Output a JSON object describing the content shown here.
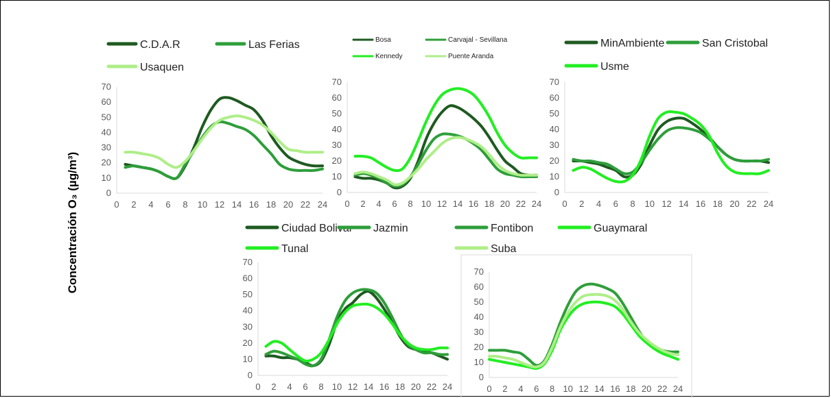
{
  "figure": {
    "ylabel": "Concentración O₃ (µg/m³)"
  },
  "colors": {
    "dark": "#1e5a20",
    "mid": "#2e9e3a",
    "bright": "#22ee22",
    "light": "#aeee88",
    "axis": "#d9d9d9",
    "tick": "#595959"
  },
  "chart_data": [
    {
      "type": "line",
      "legend": "top",
      "x_ticks": [
        0,
        2,
        4,
        6,
        8,
        10,
        12,
        14,
        16,
        18,
        20,
        22,
        24
      ],
      "ylim": [
        0,
        70
      ],
      "y_ticks": [
        0,
        10,
        20,
        30,
        40,
        50,
        60,
        70
      ],
      "x": [
        1,
        2,
        3,
        4,
        5,
        6,
        7,
        8,
        9,
        10,
        11,
        12,
        13,
        14,
        15,
        16,
        17,
        18,
        19,
        20,
        21,
        22,
        23,
        24
      ],
      "series": [
        {
          "name": "C.D.A.R",
          "color": "dark",
          "values": [
            19,
            18,
            17,
            16,
            14,
            11,
            10,
            18,
            30,
            44,
            55,
            62,
            63,
            61,
            58,
            55,
            48,
            38,
            30,
            24,
            21,
            19,
            18,
            18
          ]
        },
        {
          "name": "Las Ferias",
          "color": "mid",
          "values": [
            17,
            18,
            17,
            16,
            14,
            11,
            10,
            19,
            28,
            37,
            44,
            47,
            46,
            44,
            42,
            38,
            32,
            26,
            19,
            16,
            15,
            15,
            15,
            16
          ]
        },
        {
          "name": "Usaquen",
          "color": "light",
          "values": [
            27,
            27,
            26,
            25,
            23,
            19,
            17,
            21,
            28,
            36,
            43,
            48,
            50,
            51,
            50,
            48,
            45,
            40,
            34,
            29,
            28,
            27,
            27,
            27
          ]
        }
      ]
    },
    {
      "type": "line",
      "legend": "top",
      "x_ticks": [
        0,
        2,
        4,
        6,
        8,
        10,
        12,
        14,
        16,
        18,
        20,
        22,
        24
      ],
      "ylim": [
        0,
        70
      ],
      "y_ticks": [
        0,
        10,
        20,
        30,
        40,
        50,
        60,
        70
      ],
      "x": [
        1,
        2,
        3,
        4,
        5,
        6,
        7,
        8,
        9,
        10,
        11,
        12,
        13,
        14,
        15,
        16,
        17,
        18,
        19,
        20,
        21,
        22,
        23,
        24
      ],
      "series": [
        {
          "name": "Bosa",
          "color": "dark",
          "values": [
            10,
            9,
            9,
            8,
            6,
            3,
            4,
            9,
            20,
            34,
            44,
            51,
            55,
            54,
            51,
            47,
            42,
            35,
            27,
            20,
            16,
            12,
            11,
            11
          ]
        },
        {
          "name": "Carvajal - Sevillana",
          "color": "mid",
          "values": [
            11,
            12,
            11,
            9,
            6,
            4,
            5,
            10,
            18,
            27,
            34,
            37,
            37,
            36,
            34,
            31,
            27,
            21,
            15,
            12,
            11,
            10,
            10,
            10
          ]
        },
        {
          "name": "Kennedy",
          "color": "bright",
          "values": [
            23,
            23,
            22,
            19,
            16,
            14,
            15,
            22,
            33,
            45,
            55,
            62,
            65,
            66,
            65,
            62,
            56,
            48,
            38,
            30,
            25,
            22,
            22,
            22
          ]
        },
        {
          "name": "Puente Aranda",
          "color": "light",
          "values": [
            12,
            13,
            12,
            10,
            8,
            5,
            6,
            10,
            15,
            21,
            26,
            31,
            34,
            35,
            34,
            32,
            29,
            24,
            18,
            14,
            12,
            11,
            11,
            11
          ]
        }
      ]
    },
    {
      "type": "line",
      "legend": "top",
      "x_ticks": [
        0,
        2,
        4,
        6,
        8,
        10,
        12,
        14,
        16,
        18,
        20,
        22,
        24
      ],
      "ylim": [
        0,
        70
      ],
      "y_ticks": [
        0,
        10,
        20,
        30,
        40,
        50,
        60,
        70
      ],
      "x": [
        1,
        2,
        3,
        4,
        5,
        6,
        7,
        8,
        9,
        10,
        11,
        12,
        13,
        14,
        15,
        16,
        17,
        18,
        19,
        20,
        21,
        22,
        23,
        24
      ],
      "series": [
        {
          "name": "MinAmbiente",
          "color": "dark",
          "values": [
            20,
            20,
            19,
            18,
            16,
            14,
            10,
            11,
            18,
            30,
            40,
            45,
            47,
            47,
            44,
            40,
            35,
            29,
            24,
            21,
            20,
            20,
            20,
            19
          ]
        },
        {
          "name": "San Cristobal",
          "color": "mid",
          "values": [
            21,
            20,
            20,
            19,
            18,
            15,
            12,
            13,
            19,
            27,
            34,
            39,
            41,
            41,
            40,
            38,
            34,
            29,
            24,
            21,
            20,
            20,
            20,
            21
          ]
        },
        {
          "name": "Usme",
          "color": "bright",
          "values": [
            14,
            16,
            15,
            12,
            9,
            7,
            7,
            11,
            21,
            36,
            47,
            51,
            51,
            50,
            47,
            43,
            36,
            25,
            17,
            13,
            12,
            12,
            12,
            14
          ]
        }
      ]
    },
    {
      "type": "line",
      "legend": "top",
      "x_ticks": [
        0,
        2,
        4,
        6,
        8,
        10,
        12,
        14,
        16,
        18,
        20,
        22,
        24
      ],
      "ylim": [
        0,
        70
      ],
      "y_ticks": [
        0,
        10,
        20,
        30,
        40,
        50,
        60,
        70
      ],
      "x": [
        1,
        2,
        3,
        4,
        5,
        6,
        7,
        8,
        9,
        10,
        11,
        12,
        13,
        14,
        15,
        16,
        17,
        18,
        19,
        20,
        21,
        22,
        23,
        24
      ],
      "series": [
        {
          "name": "Ciudad Bolivar",
          "color": "dark",
          "values": [
            12,
            12,
            11,
            11,
            10,
            8,
            6,
            9,
            19,
            33,
            41,
            45,
            50,
            52,
            48,
            41,
            33,
            24,
            18,
            16,
            15,
            14,
            12,
            10
          ]
        },
        {
          "name": "Jazmin",
          "color": "mid",
          "values": [
            13,
            15,
            14,
            12,
            10,
            7,
            6,
            10,
            22,
            36,
            46,
            51,
            53,
            53,
            51,
            45,
            36,
            26,
            19,
            16,
            14,
            14,
            13,
            13
          ]
        },
        {
          "name": "Tunal",
          "color": "bright",
          "values": [
            18,
            21,
            20,
            16,
            12,
            9,
            10,
            14,
            22,
            32,
            39,
            43,
            44,
            44,
            42,
            38,
            32,
            25,
            20,
            17,
            16,
            16,
            17,
            17
          ]
        }
      ]
    },
    {
      "type": "line",
      "legend": "top",
      "x_ticks": [
        0,
        2,
        4,
        6,
        8,
        10,
        12,
        14,
        16,
        18,
        20,
        22,
        24
      ],
      "ylim": [
        0,
        70
      ],
      "y_ticks": [
        0,
        10,
        20,
        30,
        40,
        50,
        60,
        70
      ],
      "x": [
        0,
        1,
        2,
        3,
        4,
        5,
        6,
        7,
        8,
        9,
        10,
        11,
        12,
        13,
        14,
        15,
        16,
        17,
        18,
        19,
        20,
        21,
        22,
        23,
        24
      ],
      "series": [
        {
          "name": "Fontibon",
          "color": "mid",
          "values": [
            18,
            18,
            18,
            17,
            16,
            12,
            8,
            11,
            22,
            36,
            48,
            57,
            61,
            62,
            61,
            59,
            56,
            49,
            40,
            31,
            24,
            20,
            18,
            17,
            17
          ]
        },
        {
          "name": "Guaymaral",
          "color": "bright",
          "values": [
            12,
            11,
            10,
            9,
            8,
            7,
            6,
            9,
            18,
            31,
            40,
            46,
            49,
            50,
            50,
            49,
            47,
            42,
            35,
            28,
            23,
            19,
            16,
            14,
            12
          ]
        },
        {
          "name": "Suba",
          "color": "light",
          "values": [
            14,
            14,
            13,
            12,
            10,
            8,
            7,
            10,
            20,
            33,
            43,
            50,
            54,
            55,
            55,
            54,
            51,
            45,
            37,
            30,
            25,
            21,
            18,
            16,
            15
          ]
        }
      ]
    }
  ]
}
